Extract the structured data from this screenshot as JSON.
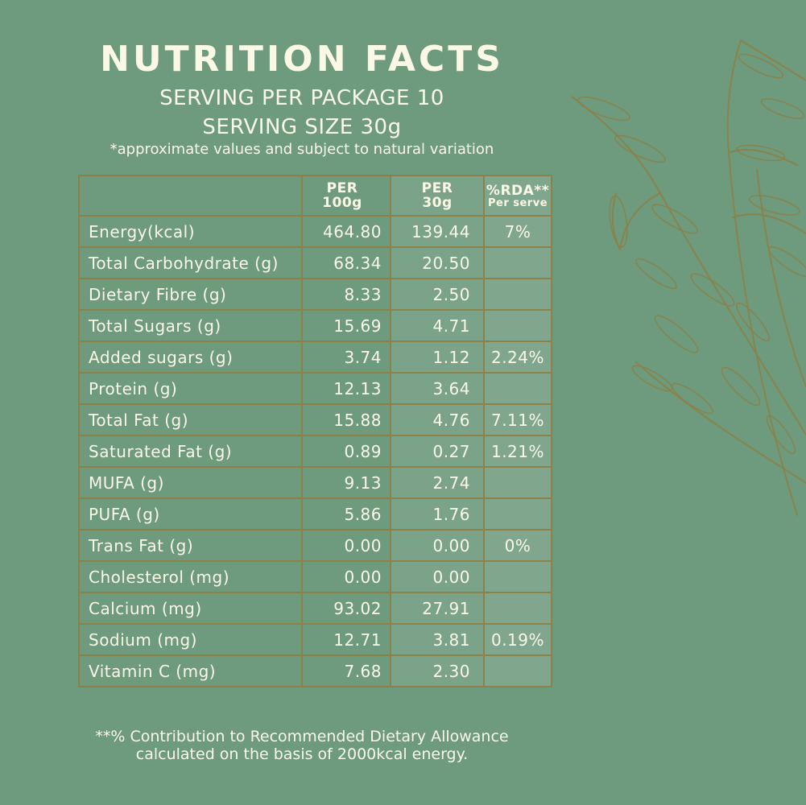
{
  "header": {
    "title": "NUTRITION FACTS",
    "servings_per_package": "SERVING PER PACKAGE 10",
    "serving_size": "SERVING SIZE 30g",
    "note": "*approximate values and subject to natural variation"
  },
  "table": {
    "columns": {
      "per100_line1": "PER",
      "per100_line2": "100g",
      "per30_line1": "PER",
      "per30_line2": "30g",
      "rda_line1": "%RDA**",
      "rda_line2": "Per serve"
    },
    "rows": [
      {
        "name": "Energy(kcal)",
        "per100": "464.80",
        "per30": "139.44",
        "rda": "7%"
      },
      {
        "name": "Total Carbohydrate (g)",
        "per100": "68.34",
        "per30": "20.50",
        "rda": ""
      },
      {
        "name": "Dietary Fibre (g)",
        "per100": "8.33",
        "per30": "2.50",
        "rda": ""
      },
      {
        "name": "Total Sugars (g)",
        "per100": "15.69",
        "per30": "4.71",
        "rda": ""
      },
      {
        "name": "Added sugars (g)",
        "per100": "3.74",
        "per30": "1.12",
        "rda": "2.24%"
      },
      {
        "name": "Protein (g)",
        "per100": "12.13",
        "per30": "3.64",
        "rda": ""
      },
      {
        "name": "Total Fat (g)",
        "per100": "15.88",
        "per30": "4.76",
        "rda": "7.11%"
      },
      {
        "name": "Saturated Fat (g)",
        "per100": "0.89",
        "per30": "0.27",
        "rda": "1.21%"
      },
      {
        "name": "MUFA (g)",
        "per100": "9.13",
        "per30": "2.74",
        "rda": ""
      },
      {
        "name": "PUFA (g)",
        "per100": "5.86",
        "per30": "1.76",
        "rda": ""
      },
      {
        "name": "Trans Fat (g)",
        "per100": "0.00",
        "per30": "0.00",
        "rda": "0%"
      },
      {
        "name": "Cholesterol (mg)",
        "per100": "0.00",
        "per30": "0.00",
        "rda": ""
      },
      {
        "name": "Calcium (mg)",
        "per100": "93.02",
        "per30": "27.91",
        "rda": ""
      },
      {
        "name": "Sodium (mg)",
        "per100": "12.71",
        "per30": "3.81",
        "rda": "0.19%"
      },
      {
        "name": "Vitamin C (mg)",
        "per100": "7.68",
        "per30": "2.30",
        "rda": ""
      }
    ]
  },
  "footnote": {
    "line1": "**% Contribution to Recommended Dietary Allowance",
    "line2": "calculated on the basis of 2000kcal energy."
  },
  "colors": {
    "background": "#6e9a7e",
    "text": "#fbf9e6",
    "table_border": "#8c8247",
    "illustration": "#8c8247"
  },
  "decoration": {
    "illustration_icon": "oat-stalks-icon"
  }
}
